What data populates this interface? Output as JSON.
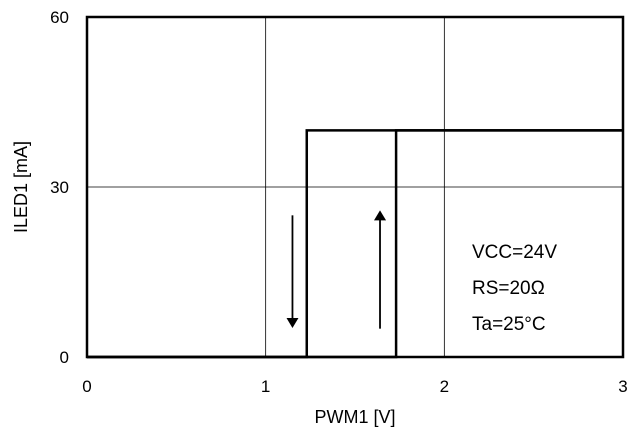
{
  "chart_data": {
    "type": "line",
    "title": "",
    "xlabel": "PWM1 [V]",
    "ylabel": "ILED1 [mA]",
    "xlim": [
      0,
      3
    ],
    "ylim": [
      0,
      60
    ],
    "x_ticks": [
      {
        "value": 0,
        "label": "0"
      },
      {
        "value": 1,
        "label": "1"
      },
      {
        "value": 2,
        "label": "2"
      },
      {
        "value": 3,
        "label": "3"
      }
    ],
    "y_ticks": [
      {
        "value": 0,
        "label": "0"
      },
      {
        "value": 30,
        "label": "30"
      },
      {
        "value": 60,
        "label": "60"
      }
    ],
    "grid": true,
    "series": [
      {
        "direction": "decreasing",
        "color": "#000000",
        "x": [
          0,
          1.23,
          1.23,
          3
        ],
        "y": [
          0,
          0,
          40,
          40
        ]
      },
      {
        "direction": "increasing",
        "color": "#000000",
        "x": [
          0,
          1.73,
          1.73,
          3
        ],
        "y": [
          0,
          0,
          40,
          40
        ]
      }
    ],
    "arrows": [
      {
        "direction": "down",
        "x": 1.15,
        "y_from": 25,
        "y_to": 6
      },
      {
        "direction": "up",
        "x": 1.64,
        "y_from": 5,
        "y_to": 25
      }
    ],
    "annotations": [
      "VCC=24V",
      "RS=20Ω",
      "Ta=25°C"
    ]
  }
}
